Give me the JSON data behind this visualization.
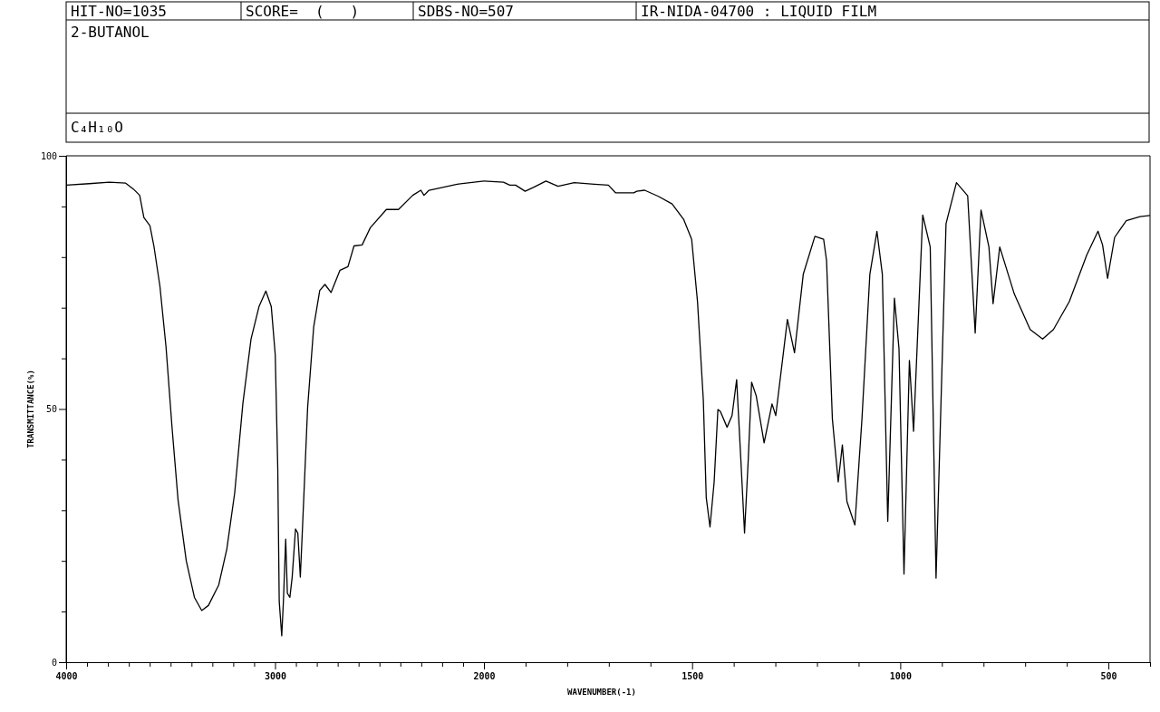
{
  "chart_data": [
    {
      "type": "line",
      "title": "2-BUTANOL",
      "subtitle": "C₄H₁₀O",
      "ylabel": "TRANSMITTANCE(%)",
      "annotations": [
        "HIT-NO=1035",
        "SCORE=  (   )",
        "SDBS-NO=507",
        "IR-NIDA-04700 : LIQUID FILM"
      ],
      "xlim": [
        4000,
        2000
      ],
      "ylim": [
        0,
        100
      ],
      "xticks": [
        4000,
        {
          "value": 3900,
          "label": null
        },
        {
          "value": 3800,
          "label": null
        },
        {
          "value": 3700,
          "label": null
        },
        {
          "value": 3600,
          "label": null
        },
        {
          "value": 3500,
          "label": null
        },
        {
          "value": 3400,
          "label": null
        },
        {
          "value": 3300,
          "label": null
        },
        {
          "value": 3200,
          "label": null
        },
        {
          "value": 3100,
          "label": null
        },
        3000,
        {
          "value": 2900,
          "label": null
        },
        {
          "value": 2800,
          "label": null
        },
        {
          "value": 2700,
          "label": null
        },
        {
          "value": 2600,
          "label": null
        },
        {
          "value": 2500,
          "label": null
        },
        {
          "value": 2400,
          "label": null
        },
        {
          "value": 2300,
          "label": null
        },
        {
          "value": 2200,
          "label": null
        },
        {
          "value": 2100,
          "label": null
        }
      ],
      "yticks": [
        0,
        {
          "value": 10,
          "label": null
        },
        {
          "value": 20,
          "label": null
        },
        {
          "value": 30,
          "label": null
        },
        {
          "value": 40,
          "label": null
        },
        50,
        {
          "value": 60,
          "label": null
        },
        {
          "value": 70,
          "label": null
        },
        {
          "value": 80,
          "label": null
        },
        {
          "value": 90,
          "label": null
        },
        100
      ],
      "grid": false,
      "marker": "none",
      "line_style": "solid",
      "series": [
        {
          "color": "#000000",
          "x": [
            4000,
            3890,
            3793,
            3715,
            3677,
            3648,
            3628,
            3599,
            3580,
            3551,
            3522,
            3493,
            3464,
            3425,
            3386,
            3351,
            3319,
            3270,
            3231,
            3193,
            3154,
            3115,
            3077,
            3044,
            3018,
            2999,
            2987,
            2980,
            2968,
            2960,
            2949,
            2941,
            2929,
            2918,
            2902,
            2891,
            2879,
            2868,
            2844,
            2815,
            2786,
            2761,
            2732,
            2689,
            2651,
            2622,
            2583,
            2544,
            2467,
            2409,
            2341,
            2302,
            2287,
            2263,
            2128,
            2000
          ],
          "values": [
            94.2,
            94.5,
            94.8,
            94.6,
            93.4,
            92.2,
            87.8,
            86.2,
            82.2,
            74.2,
            62.3,
            46.3,
            31.9,
            20.0,
            12.8,
            10.2,
            11.2,
            15.2,
            22.3,
            33.5,
            51.1,
            63.8,
            70.2,
            73.3,
            70.2,
            60.7,
            38.3,
            12.0,
            5.2,
            12.0,
            24.3,
            13.6,
            12.8,
            16.8,
            26.3,
            25.5,
            16.8,
            27.1,
            50.3,
            66.2,
            73.4,
            74.6,
            73.0,
            77.4,
            78.1,
            82.2,
            82.4,
            85.8,
            89.4,
            89.4,
            92.2,
            93.2,
            92.2,
            93.2,
            94.4,
            95.0
          ]
        }
      ]
    },
    {
      "type": "line",
      "xlabel": "WAVENUMBER(-1)",
      "xlim": [
        2000,
        400
      ],
      "ylim": [
        0,
        100
      ],
      "tick_labels": "x",
      "xticks": [
        2000,
        {
          "value": 1900,
          "label": null
        },
        {
          "value": 1800,
          "label": null
        },
        {
          "value": 1700,
          "label": null
        },
        {
          "value": 1600,
          "label": null
        },
        1500,
        {
          "value": 1400,
          "label": null
        },
        {
          "value": 1300,
          "label": null
        },
        {
          "value": 1200,
          "label": null
        },
        {
          "value": 1100,
          "label": null
        },
        1000,
        {
          "value": 900,
          "label": null
        },
        {
          "value": 800,
          "label": null
        },
        {
          "value": 700,
          "label": null
        },
        {
          "value": 600,
          "label": null
        },
        500,
        {
          "value": 400,
          "label": null
        }
      ],
      "grid": false,
      "marker": "none",
      "line_style": "solid",
      "series": [
        {
          "color": "#000000",
          "x": [
            2000,
            1953,
            1938,
            1924,
            1901,
            1880,
            1851,
            1822,
            1783,
            1735,
            1701,
            1684,
            1640,
            1633,
            1614,
            1581,
            1548,
            1520,
            1501,
            1487,
            1473,
            1466,
            1457,
            1447,
            1438,
            1432,
            1416,
            1404,
            1393,
            1383,
            1374,
            1365,
            1357,
            1346,
            1327,
            1308,
            1299,
            1271,
            1254,
            1233,
            1205,
            1184,
            1177,
            1163,
            1149,
            1139,
            1128,
            1109,
            1092,
            1073,
            1056,
            1043,
            1030,
            1014,
            1003,
            991,
            978,
            968,
            946,
            928,
            914,
            890,
            865,
            838,
            820,
            806,
            787,
            777,
            761,
            726,
            688,
            658,
            632,
            594,
            552,
            525,
            514,
            502,
            485,
            457,
            424,
            400
          ],
          "values": [
            95.0,
            94.8,
            94.2,
            94.2,
            93.0,
            93.8,
            95.0,
            94.0,
            94.7,
            94.4,
            94.2,
            92.7,
            92.7,
            93.0,
            93.2,
            92.0,
            90.5,
            87.4,
            83.5,
            71.2,
            51.8,
            32.5,
            26.7,
            35.6,
            49.9,
            49.5,
            46.4,
            48.7,
            55.8,
            40.2,
            25.5,
            40.2,
            55.3,
            52.6,
            43.3,
            51.0,
            48.7,
            67.7,
            61.1,
            76.6,
            84.1,
            83.5,
            79.3,
            48.0,
            35.6,
            42.9,
            31.7,
            27.1,
            48.0,
            76.6,
            85.1,
            76.6,
            27.8,
            71.9,
            61.9,
            17.4,
            59.6,
            45.6,
            88.3,
            82.0,
            16.6,
            86.6,
            94.7,
            92.1,
            65.0,
            89.3,
            82.0,
            70.8,
            82.0,
            72.7,
            65.7,
            63.8,
            65.7,
            71.2,
            80.4,
            85.1,
            82.4,
            75.8,
            83.9,
            87.2,
            88.0,
            88.2
          ]
        }
      ]
    }
  ]
}
